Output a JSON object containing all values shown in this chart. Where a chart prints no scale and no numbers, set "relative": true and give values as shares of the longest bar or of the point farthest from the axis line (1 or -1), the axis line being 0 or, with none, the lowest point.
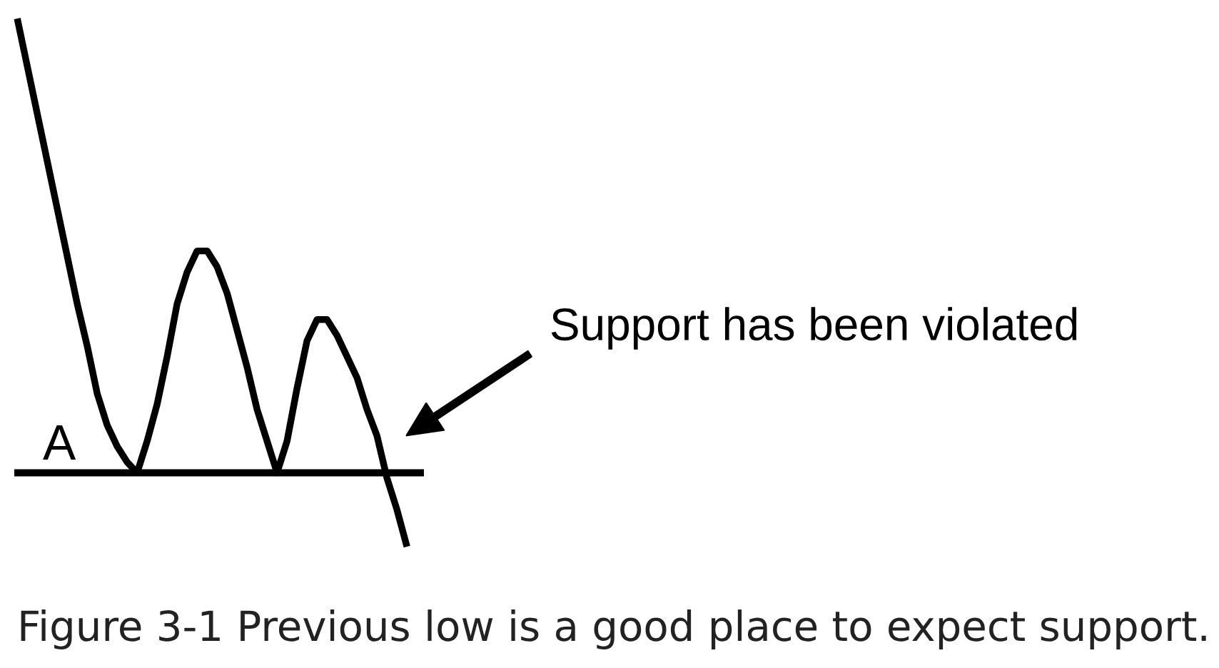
{
  "chart_data": {
    "type": "line",
    "relative": true,
    "categories": [
      null,
      null,
      null,
      null,
      null,
      null,
      null,
      null,
      null,
      null,
      null,
      null,
      null,
      null,
      null,
      null,
      null,
      null,
      null,
      null,
      null,
      null,
      null,
      null,
      null,
      null,
      null,
      null,
      null,
      null,
      null,
      null,
      null,
      null,
      null,
      null,
      null,
      null,
      null,
      null
    ],
    "series": [
      {
        "color": "#000000",
        "values": [
          1.0,
          0.91,
          0.82,
          0.73,
          0.64,
          0.55,
          0.46,
          0.38,
          0.29,
          0.23,
          0.19,
          0.16,
          0.14,
          0.2,
          0.27,
          0.36,
          0.46,
          0.52,
          0.56,
          0.56,
          0.53,
          0.48,
          0.41,
          0.34,
          0.26,
          0.2,
          0.14,
          0.2,
          0.3,
          0.39,
          0.43,
          0.43,
          0.4,
          0.36,
          0.32,
          0.26,
          0.21,
          0.13,
          0.07,
          0.0
        ]
      }
    ],
    "ref_lines": [
      {
        "axis": "y",
        "value": 0.14,
        "label": "A",
        "color": "#000000",
        "line_style": "solid"
      }
    ],
    "annotations": [
      "Support has been violated",
      "Figure 3-1 Previous low is a good place to expect support."
    ]
  }
}
